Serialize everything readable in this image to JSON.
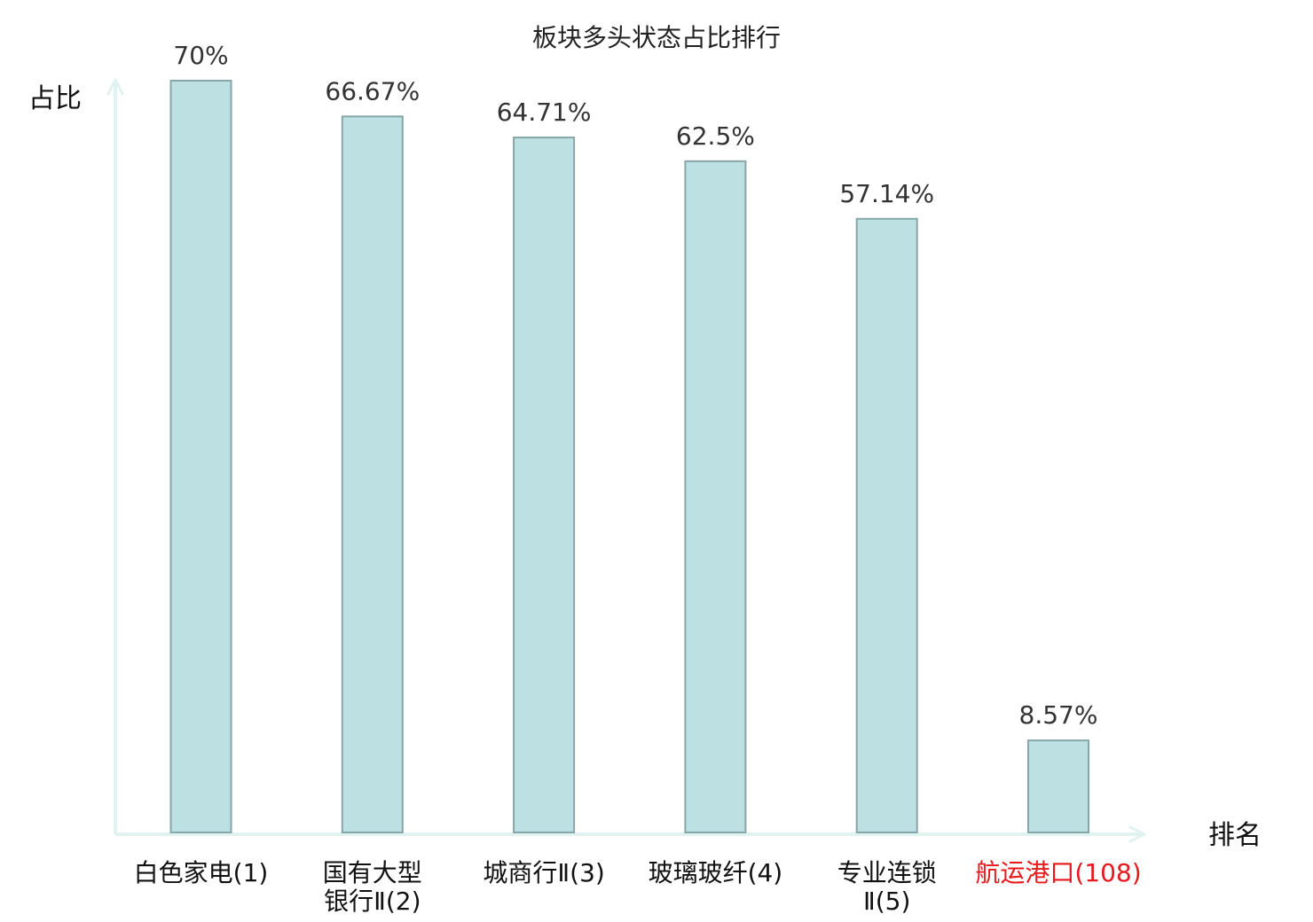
{
  "chart_data": {
    "type": "bar",
    "title": "板块多头状态占比排行",
    "ylabel": "占比",
    "xlabel": "排名",
    "ylim": [
      0,
      70
    ],
    "grid": false,
    "categories": [
      [
        "白色家电(1)"
      ],
      [
        "国有大型",
        "银行Ⅱ(2)"
      ],
      [
        "城商行Ⅱ(3)"
      ],
      [
        "玻璃玻纤(4)"
      ],
      [
        "专业连锁",
        "Ⅱ(5)"
      ],
      [
        "航运港口(108)"
      ]
    ],
    "values": [
      70,
      66.67,
      64.71,
      62.5,
      57.14,
      8.57
    ],
    "value_labels": [
      "70%",
      "66.67%",
      "64.71%",
      "62.5%",
      "57.14%",
      "8.57%"
    ],
    "highlight_index": 5
  },
  "colors": {
    "bar_fill": "#bde0e3",
    "bar_stroke": "#86a6a9",
    "axis": "#e0f3f1",
    "label": "#333333",
    "highlight_label": "#e8191d"
  }
}
